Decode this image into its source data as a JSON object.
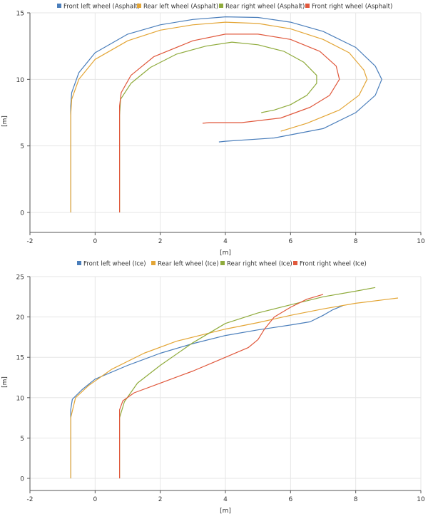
{
  "chart_data": [
    {
      "type": "line",
      "title": "",
      "xlabel": "[m]",
      "ylabel": "[m]",
      "xlim": [
        -2,
        10
      ],
      "ylim": [
        -1.5,
        15
      ],
      "x_ticks": [
        "-2",
        "0",
        "2",
        "4",
        "6",
        "8",
        "10"
      ],
      "y_ticks": [
        "0",
        "5",
        "10",
        "15"
      ],
      "grid": true,
      "legend_position": "top",
      "series": [
        {
          "name": "Front left wheel (Asphalt)",
          "color": "#4a7ebb",
          "points": [
            [
              -0.75,
              0
            ],
            [
              -0.75,
              8
            ],
            [
              -0.72,
              9
            ],
            [
              -0.5,
              10.5
            ],
            [
              0,
              12
            ],
            [
              1,
              13.4
            ],
            [
              2,
              14.1
            ],
            [
              3,
              14.5
            ],
            [
              4,
              14.7
            ],
            [
              5,
              14.65
            ],
            [
              6,
              14.3
            ],
            [
              7,
              13.6
            ],
            [
              8,
              12.4
            ],
            [
              8.6,
              11
            ],
            [
              8.8,
              10
            ],
            [
              8.6,
              8.8
            ],
            [
              8,
              7.5
            ],
            [
              7,
              6.3
            ],
            [
              5.5,
              5.6
            ],
            [
              4,
              5.35
            ],
            [
              3.8,
              5.3
            ]
          ]
        },
        {
          "name": "Rear left wheel (Asphalt)",
          "color": "#e3a535",
          "points": [
            [
              -0.75,
              0
            ],
            [
              -0.75,
              7.3
            ],
            [
              -0.72,
              8.5
            ],
            [
              -0.5,
              10
            ],
            [
              0,
              11.5
            ],
            [
              1,
              12.9
            ],
            [
              2,
              13.7
            ],
            [
              3,
              14.1
            ],
            [
              4,
              14.3
            ],
            [
              5,
              14.2
            ],
            [
              6,
              13.8
            ],
            [
              7,
              13
            ],
            [
              7.8,
              12
            ],
            [
              8.25,
              10.7
            ],
            [
              8.35,
              10
            ],
            [
              8.1,
              8.8
            ],
            [
              7.5,
              7.7
            ],
            [
              6.5,
              6.7
            ],
            [
              5.7,
              6.1
            ]
          ]
        },
        {
          "name": "Rear right wheel (Asphalt)",
          "color": "#8fab3c",
          "points": [
            [
              0.75,
              0
            ],
            [
              0.75,
              7.3
            ],
            [
              0.78,
              8.5
            ],
            [
              1.1,
              9.7
            ],
            [
              1.7,
              10.9
            ],
            [
              2.5,
              11.9
            ],
            [
              3.4,
              12.5
            ],
            [
              4.2,
              12.8
            ],
            [
              5,
              12.6
            ],
            [
              5.8,
              12.1
            ],
            [
              6.4,
              11.3
            ],
            [
              6.8,
              10.3
            ],
            [
              6.8,
              9.7
            ],
            [
              6.5,
              8.8
            ],
            [
              6,
              8.1
            ],
            [
              5.5,
              7.7
            ],
            [
              5.1,
              7.5
            ]
          ]
        },
        {
          "name": "Front right wheel (Asphalt)",
          "color": "#e0583c",
          "points": [
            [
              0.75,
              0
            ],
            [
              0.75,
              8
            ],
            [
              0.8,
              9
            ],
            [
              1.1,
              10.3
            ],
            [
              1.8,
              11.7
            ],
            [
              3,
              12.9
            ],
            [
              4,
              13.4
            ],
            [
              5,
              13.4
            ],
            [
              6,
              13
            ],
            [
              6.9,
              12.1
            ],
            [
              7.4,
              11
            ],
            [
              7.5,
              10
            ],
            [
              7.2,
              8.8
            ],
            [
              6.6,
              7.9
            ],
            [
              5.7,
              7.1
            ],
            [
              4.5,
              6.75
            ],
            [
              3.5,
              6.75
            ],
            [
              3.3,
              6.7
            ]
          ]
        }
      ]
    },
    {
      "type": "line",
      "title": "",
      "xlabel": "[m]",
      "ylabel": "[m]",
      "xlim": [
        -2,
        10
      ],
      "ylim": [
        -1.5,
        25
      ],
      "x_ticks": [
        "-2",
        "0",
        "2",
        "4",
        "6",
        "8",
        "10"
      ],
      "y_ticks": [
        "0",
        "5",
        "10",
        "15",
        "20",
        "25"
      ],
      "grid": true,
      "legend_position": "top",
      "series": [
        {
          "name": "Front left wheel (Ice)",
          "color": "#4a7ebb",
          "points": [
            [
              -0.75,
              0
            ],
            [
              -0.75,
              8.5
            ],
            [
              -0.7,
              9.8
            ],
            [
              -0.4,
              11
            ],
            [
              0,
              12.3
            ],
            [
              1,
              14
            ],
            [
              2,
              15.5
            ],
            [
              3,
              16.7
            ],
            [
              4,
              17.7
            ],
            [
              5,
              18.4
            ],
            [
              6,
              19
            ],
            [
              6.6,
              19.4
            ],
            [
              7,
              20.2
            ],
            [
              7.3,
              20.9
            ],
            [
              7.6,
              21.4
            ]
          ]
        },
        {
          "name": "Rear left wheel (Ice)",
          "color": "#e3a535",
          "points": [
            [
              -0.75,
              0
            ],
            [
              -0.75,
              7.5
            ],
            [
              -0.6,
              10
            ],
            [
              -0.2,
              11.5
            ],
            [
              0.5,
              13.5
            ],
            [
              1.5,
              15.5
            ],
            [
              2.5,
              17
            ],
            [
              4,
              18.5
            ],
            [
              5,
              19.3
            ],
            [
              6,
              20.2
            ],
            [
              7,
              21
            ],
            [
              8,
              21.7
            ],
            [
              9,
              22.2
            ],
            [
              9.3,
              22.35
            ]
          ]
        },
        {
          "name": "Rear right wheel (Ice)",
          "color": "#8fab3c",
          "points": [
            [
              0.75,
              0
            ],
            [
              0.75,
              7.5
            ],
            [
              0.9,
              9.5
            ],
            [
              1.3,
              11.8
            ],
            [
              2,
              14
            ],
            [
              3,
              16.8
            ],
            [
              4,
              19.2
            ],
            [
              5,
              20.5
            ],
            [
              6,
              21.5
            ],
            [
              7,
              22.5
            ],
            [
              8,
              23.2
            ],
            [
              8.6,
              23.65
            ]
          ]
        },
        {
          "name": "Front right wheel (Ice)",
          "color": "#e0583c",
          "points": [
            [
              0.75,
              0
            ],
            [
              0.75,
              8.5
            ],
            [
              0.85,
              9.6
            ],
            [
              1.2,
              10.6
            ],
            [
              2,
              11.8
            ],
            [
              3,
              13.3
            ],
            [
              4,
              15
            ],
            [
              4.7,
              16.2
            ],
            [
              5,
              17.2
            ],
            [
              5.2,
              18.5
            ],
            [
              5.5,
              20
            ],
            [
              6,
              21.2
            ],
            [
              6.5,
              22.2
            ],
            [
              7,
              22.8
            ]
          ]
        }
      ]
    }
  ]
}
